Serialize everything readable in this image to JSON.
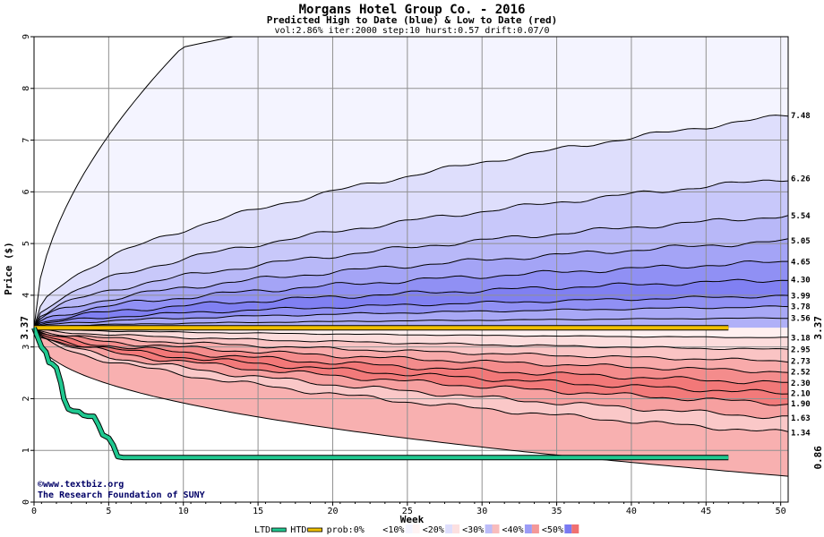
{
  "chart_data": {
    "type": "area",
    "title": "Morgans Hotel Group Co. - 2016",
    "subtitle": "Predicted High to Date (blue) &  Low to Date (red)",
    "params": "vol:2.86% iter:2000 step:10 hurst:0.57 drift:0.07/0",
    "xlabel": "Week",
    "ylabel": "Price ($)",
    "xlim": [
      0,
      50.5
    ],
    "ylim": [
      0,
      9
    ],
    "xticks": [
      0,
      5,
      10,
      15,
      20,
      25,
      30,
      35,
      40,
      45,
      50
    ],
    "yticks": [
      0,
      1,
      2,
      3,
      4,
      5,
      6,
      7,
      8,
      9
    ],
    "grid": true,
    "start_price": 3.37,
    "start_price_label": "3.37",
    "current_price_label": "3.37",
    "low_to_date_label": "0.86",
    "high_quantile_end_values": [
      3.56,
      3.78,
      3.99,
      4.3,
      4.65,
      5.05,
      5.54,
      6.26,
      7.48
    ],
    "high_quantile_end_labels": [
      "3.56",
      "3.78",
      "3.99",
      "4.30",
      "4.65",
      "5.05",
      "5.54",
      "6.26",
      "7.48"
    ],
    "low_quantile_end_values": [
      3.18,
      2.95,
      2.73,
      2.52,
      2.3,
      2.1,
      1.9,
      1.63,
      1.34
    ],
    "low_quantile_end_labels": [
      "3.18",
      "2.95",
      "2.73",
      "2.52",
      "2.30",
      "2.10",
      "1.90",
      "1.63",
      "1.34"
    ],
    "outer_high_end": 9.0,
    "outer_low_end": 0.5,
    "htd_line": {
      "x": [
        0,
        46.5
      ],
      "y": [
        3.37,
        3.37
      ],
      "color": "#f0c000"
    },
    "ltd_line": {
      "x": [
        0,
        0.5,
        0.8,
        1.0,
        1.2,
        1.5,
        1.8,
        2.0,
        2.3,
        2.6,
        3.0,
        3.3,
        3.6,
        4.0,
        4.3,
        4.6,
        5.0,
        5.3,
        5.6,
        6.0,
        46.5
      ],
      "y": [
        3.37,
        3.0,
        2.9,
        2.7,
        2.68,
        2.6,
        2.3,
        2.0,
        1.8,
        1.76,
        1.75,
        1.68,
        1.66,
        1.66,
        1.5,
        1.3,
        1.24,
        1.1,
        0.88,
        0.86,
        0.86
      ],
      "color": "#20c890"
    }
  },
  "credit": {
    "line1": "©www.textbiz.org",
    "line2": "The Research Foundation of SUNY"
  },
  "legend": {
    "items": [
      {
        "label": "LTD",
        "color": "#20c890",
        "kind": "line"
      },
      {
        "label": "HTD",
        "color": "#f0c000",
        "kind": "line"
      },
      {
        "label": "prob:0%",
        "color": "#ffffff",
        "kind": "swatch"
      },
      {
        "label": "<10%",
        "color": "#f4f4ff",
        "color2": "#fff4f4",
        "kind": "swatch"
      },
      {
        "label": "<20%",
        "color": "#dedefc",
        "color2": "#fce0e0",
        "kind": "swatch"
      },
      {
        "label": "<30%",
        "color": "#bcbcf8",
        "color2": "#f8bcbc",
        "kind": "swatch"
      },
      {
        "label": "<40%",
        "color": "#9c9cf6",
        "color2": "#f49898",
        "kind": "swatch"
      },
      {
        "label": "<50%",
        "color": "#7a7af2",
        "color2": "#f07070",
        "kind": "swatch"
      }
    ]
  },
  "colors": {
    "blue_bands": [
      "#f4f4ff",
      "#dedefc",
      "#c8c8fa",
      "#b8b8f8",
      "#a4a4f6",
      "#9090f4",
      "#8080f2",
      "#9090f4",
      "#a8a8f6"
    ],
    "red_bands": [
      "#fff0f0",
      "#fcdcdc",
      "#fac4c4",
      "#f8aaaa",
      "#f48c8c",
      "#f27878",
      "#f27a7a",
      "#f6a0a0",
      "#fac8c8"
    ],
    "start_label": "#008000",
    "current_label": "#a07800",
    "low_label": "#008060"
  }
}
